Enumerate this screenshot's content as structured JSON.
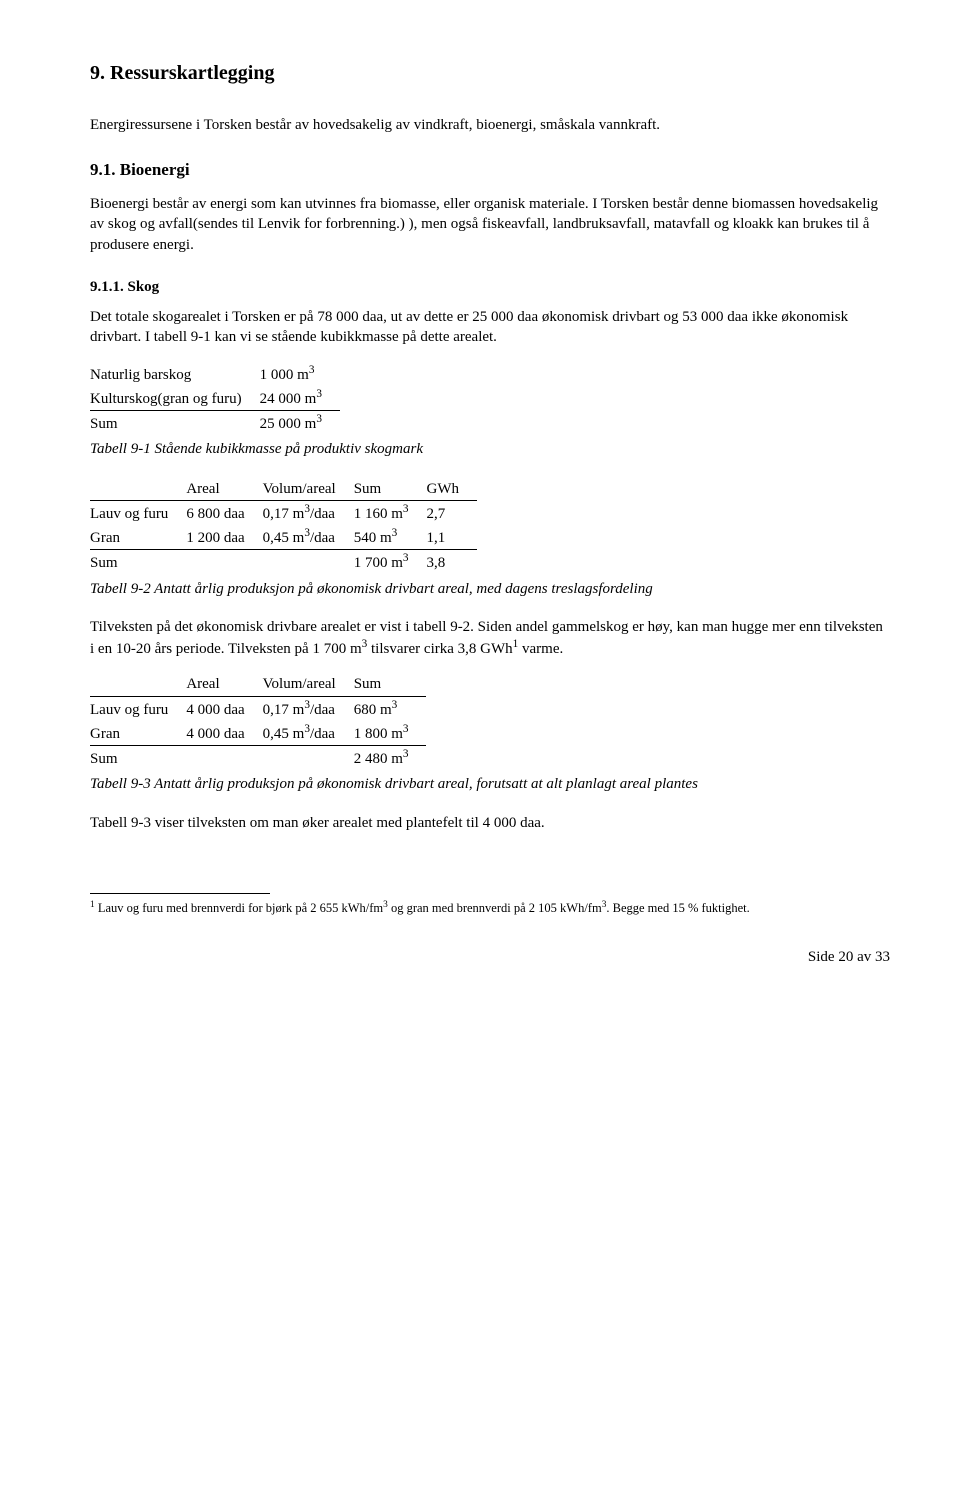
{
  "h1": "9. Ressurskartlegging",
  "p1": "Energiressursene i Torsken består av hovedsakelig av vindkraft, bioenergi, småskala vannkraft.",
  "h2": "9.1.    Bioenergi",
  "p2": "Bioenergi består av energi som kan utvinnes fra biomasse, eller organisk materiale. I Torsken består denne biomassen hovedsakelig av skog og avfall(sendes til Lenvik for forbrenning.) ), men også fiskeavfall, landbruksavfall, matavfall og kloakk kan brukes til å produsere energi.",
  "h3": "9.1.1.  Skog",
  "p3": "Det totale skogarealet i Torsken er på 78 000 daa, ut av dette er 25 000 daa økonomisk drivbart og 53 000 daa ikke økonomisk drivbart. I tabell 9-1 kan vi se stående kubikkmasse på dette arealet.",
  "t1": {
    "rows": [
      [
        "Naturlig barskog",
        "1 000 m"
      ],
      [
        "Kulturskog(gran og furu)",
        "24 000 m"
      ],
      [
        "Sum",
        "25 000 m"
      ]
    ],
    "caption": "Tabell 9-1 Stående kubikkmasse på produktiv skogmark"
  },
  "t2": {
    "head": [
      "",
      "Areal",
      "Volum/areal",
      "Sum",
      "GWh"
    ],
    "rows": [
      [
        "Lauv og furu",
        "6 800 daa",
        "0,17 m",
        "/daa",
        "1 160 m",
        "2,7"
      ],
      [
        "Gran",
        "1 200 daa",
        "0,45 m",
        "/daa",
        "540 m",
        "1,1"
      ],
      [
        "Sum",
        "",
        "",
        "",
        "1 700 m",
        "3,8"
      ]
    ],
    "caption": "Tabell 9-2 Antatt årlig produksjon på økonomisk drivbart areal, med dagens treslagsfordeling"
  },
  "p4a": "Tilveksten på det økonomisk drivbare arealet er vist i tabell 9-2. Siden andel gammelskog er høy, kan man hugge mer enn tilveksten i en 10-20 års periode. Tilveksten på 1 700 m",
  "p4b": " tilsvarer cirka 3,8 GWh",
  "p4c": " varme.",
  "t3": {
    "head": [
      "",
      "Areal",
      "Volum/areal",
      "Sum"
    ],
    "rows": [
      [
        "Lauv og furu",
        "4 000 daa",
        "0,17 m",
        "/daa",
        "680 m"
      ],
      [
        "Gran",
        "4 000 daa",
        "0,45 m",
        "/daa",
        "1 800 m"
      ],
      [
        "Sum",
        "",
        "",
        "",
        "2 480 m"
      ]
    ],
    "caption": "Tabell 9-3 Antatt årlig produksjon på økonomisk drivbart areal, forutsatt at alt planlagt areal plantes"
  },
  "p5": "Tabell 9-3 viser tilveksten om man øker arealet med plantefelt til 4 000 daa.",
  "fn_a": " Lauv og furu med brennverdi for bjørk på 2 655 kWh/fm",
  "fn_b": " og gran med brennverdi på 2 105 kWh/fm",
  "fn_c": ". Begge med 15 % fuktighet.",
  "page": "Side 20 av 33"
}
